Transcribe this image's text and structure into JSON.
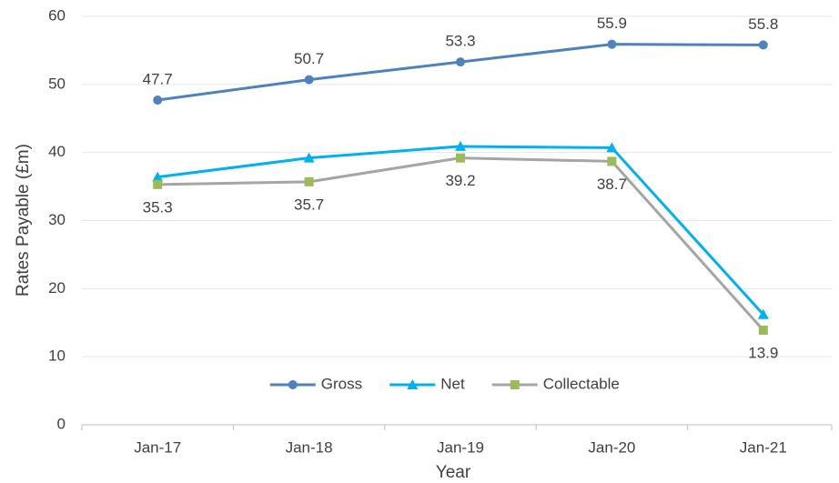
{
  "chart_data": {
    "type": "line",
    "x_label": "Year",
    "y_label": "Rates Payable (£m)",
    "categories": [
      "Jan-17",
      "Jan-18",
      "Jan-19",
      "Jan-20",
      "Jan-21"
    ],
    "series": [
      {
        "name": "Gross",
        "color": "#4f81bd",
        "marker": "circle",
        "marker_color": "#4f81bd",
        "labels": "above",
        "values": [
          47.7,
          50.7,
          53.3,
          55.9,
          55.8
        ]
      },
      {
        "name": "Net",
        "color": "#00b0f0",
        "marker": "triangle",
        "marker_color": "#00b0f0",
        "values": [
          36.4,
          39.2,
          40.9,
          40.7,
          16.2
        ]
      },
      {
        "name": "Collectable",
        "color": "#a5a5a5",
        "marker": "square",
        "marker_color": "#9bbb59",
        "labels": "below",
        "values": [
          35.3,
          35.7,
          39.2,
          38.7,
          13.9
        ]
      }
    ],
    "ylim": [
      0,
      60
    ],
    "yticks": [
      0,
      10,
      20,
      30,
      40,
      50,
      60
    ],
    "grid": true,
    "legend": "lower center"
  }
}
